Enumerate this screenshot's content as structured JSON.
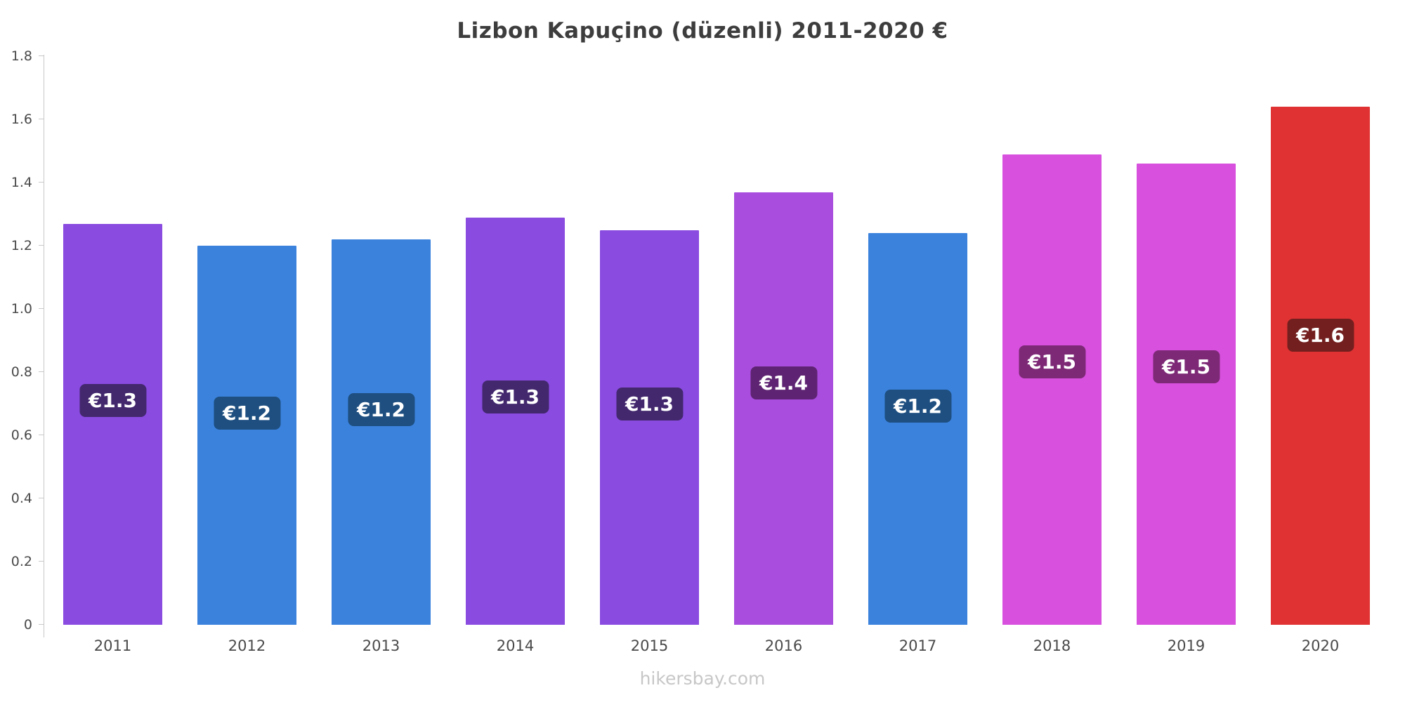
{
  "title": "Lizbon Kapuçino (düzenli) 2011-2020 €",
  "footer": {
    "site_label": "hikersbay.com"
  },
  "chart_data": {
    "type": "bar",
    "title": "Lizbon Kapuçino (düzenli) 2011-2020 €",
    "categories": [
      "2011",
      "2012",
      "2013",
      "2014",
      "2015",
      "2016",
      "2017",
      "2018",
      "2019",
      "2020"
    ],
    "values": [
      1.27,
      1.2,
      1.22,
      1.29,
      1.25,
      1.37,
      1.24,
      1.49,
      1.46,
      1.64
    ],
    "value_labels": [
      "€1.3",
      "€1.2",
      "€1.2",
      "€1.3",
      "€1.3",
      "€1.4",
      "€1.2",
      "€1.5",
      "€1.5",
      "€1.6"
    ],
    "bar_colors": [
      "#8a4be0",
      "#3b82dd",
      "#3b82dd",
      "#8a4be0",
      "#8a4be0",
      "#a84ddd",
      "#3b82dd",
      "#d750de",
      "#d750de",
      "#e03233"
    ],
    "badge_colors": [
      "#43286e",
      "#1e4f80",
      "#1e4f80",
      "#43286e",
      "#43286e",
      "#5e2372",
      "#1e4f80",
      "#7d2976",
      "#7d2976",
      "#741f1f"
    ],
    "xlabel": "",
    "ylabel": "",
    "ylim": [
      0,
      1.8
    ],
    "yticks": [
      0,
      0.2,
      0.4,
      0.6,
      0.8,
      1.0,
      1.2,
      1.4,
      1.6,
      1.8
    ],
    "ytick_labels": [
      "0",
      "0.2",
      "0.4",
      "0.6",
      "0.8",
      "1.0",
      "1.2",
      "1.4",
      "1.6",
      "1.8"
    ],
    "grid": false,
    "legend": false
  }
}
